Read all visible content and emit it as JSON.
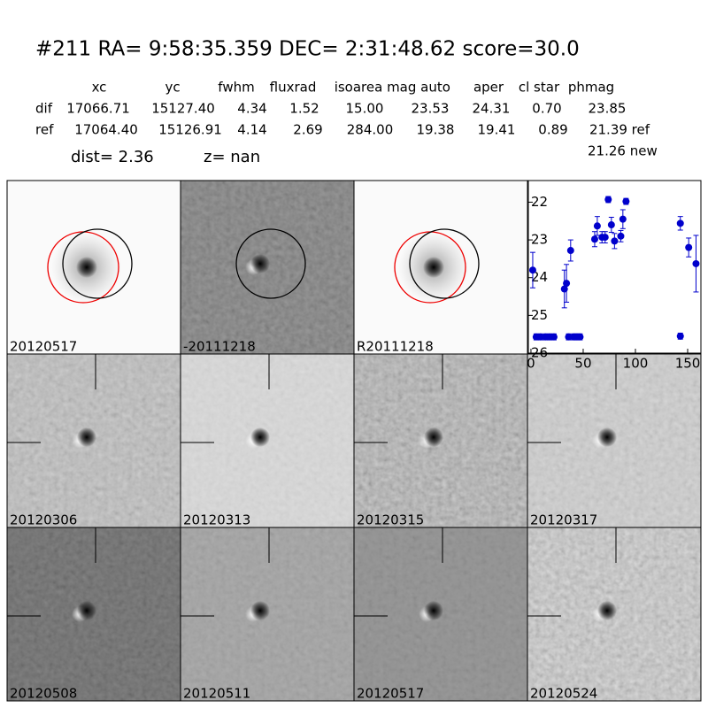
{
  "header": {
    "title": "#211   RA= 9:58:35.359 DEC= 2:31:48.62      score=30.0"
  },
  "table": {
    "columns": [
      "xc",
      "yc",
      "fwhm",
      "fluxrad",
      "isoarea",
      "mag auto",
      "aper",
      "cl star",
      "phmag"
    ],
    "rows": [
      [
        "dif",
        "17066.71",
        "15127.40",
        "4.34",
        "1.52",
        "15.00",
        "23.53",
        "24.31",
        "0.70",
        "23.85"
      ],
      [
        "ref",
        "17064.40",
        "15126.91",
        "4.14",
        "2.69",
        "284.00",
        "19.38",
        "19.41",
        "0.89",
        "21.39 ref"
      ]
    ],
    "dist": "dist=  2.36",
    "z": "z=   nan",
    "new": "21.26 new"
  },
  "panels": [
    {
      "label": "20120517"
    },
    {
      "label": "-20111218"
    },
    {
      "label": "R20111218"
    },
    {
      "label": "20120306"
    },
    {
      "label": "20120313"
    },
    {
      "label": "20120315"
    },
    {
      "label": "20120317"
    },
    {
      "label": "20120508"
    },
    {
      "label": "20120511"
    },
    {
      "label": "20120517",
      "color": "#ff0000"
    },
    {
      "label": "20120524"
    }
  ],
  "chart_data": {
    "type": "scatter",
    "color": "#0000cc",
    "x": [
      1.7,
      5,
      9,
      14,
      18,
      22,
      32,
      34,
      38,
      36,
      41,
      44,
      47,
      61,
      63.5,
      68,
      71,
      74,
      77,
      80,
      86,
      88,
      91,
      143,
      143,
      151,
      158
    ],
    "y": [
      23.8,
      25.57,
      25.57,
      25.57,
      25.57,
      25.57,
      24.3,
      24.15,
      23.28,
      25.57,
      25.57,
      25.57,
      25.57,
      22.98,
      22.63,
      22.93,
      22.93,
      21.93,
      22.6,
      23.03,
      22.9,
      22.45,
      21.98,
      22.56,
      25.55,
      23.2,
      23.63
    ],
    "yerr": [
      0.47,
      0.08,
      0.08,
      0.08,
      0.08,
      0.08,
      0.5,
      0.5,
      0.28,
      0.08,
      0.08,
      0.08,
      0.08,
      0.2,
      0.25,
      0.15,
      0.15,
      0.08,
      0.2,
      0.2,
      0.15,
      0.25,
      0.08,
      0.18,
      0.08,
      0.25,
      0.75
    ],
    "xlim": [
      -2.5,
      162.7
    ],
    "ylim": [
      26,
      21.45
    ],
    "xticks": [
      0,
      50,
      100,
      150
    ],
    "yticks": [
      22,
      23,
      24,
      25,
      26
    ]
  }
}
